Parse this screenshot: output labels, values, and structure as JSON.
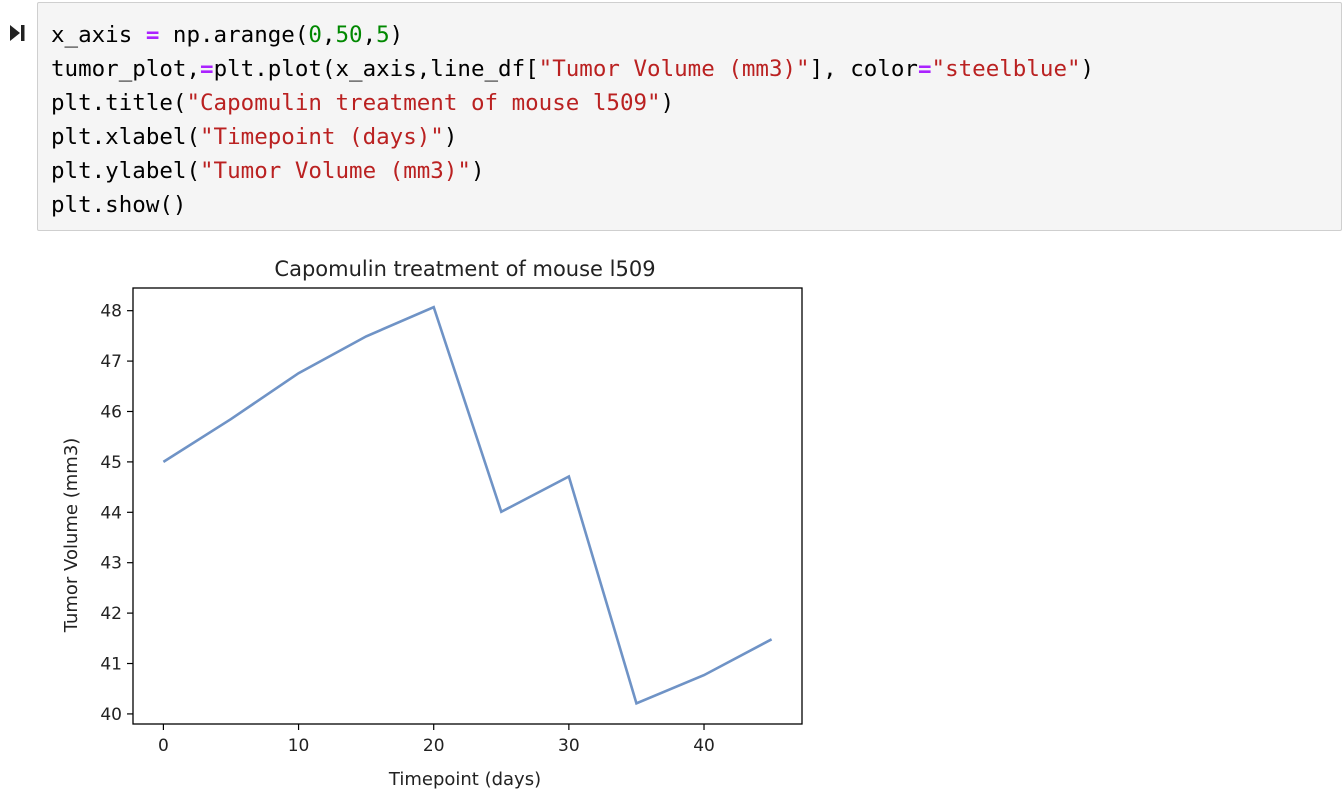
{
  "cell": {
    "run_icon": "run-cell-icon",
    "lines": [
      [
        {
          "t": "x_axis ",
          "c": "tok-plain"
        },
        {
          "t": "=",
          "c": "tok-op"
        },
        {
          "t": " np.arange(",
          "c": "tok-plain"
        },
        {
          "t": "0",
          "c": "tok-num"
        },
        {
          "t": ",",
          "c": "tok-plain"
        },
        {
          "t": "50",
          "c": "tok-num"
        },
        {
          "t": ",",
          "c": "tok-plain"
        },
        {
          "t": "5",
          "c": "tok-num"
        },
        {
          "t": ")",
          "c": "tok-plain"
        }
      ],
      [
        {
          "t": "tumor_plot,",
          "c": "tok-plain"
        },
        {
          "t": "=",
          "c": "tok-op"
        },
        {
          "t": "plt.plot(x_axis,line_df[",
          "c": "tok-plain"
        },
        {
          "t": "\"Tumor Volume (mm3)\"",
          "c": "tok-str"
        },
        {
          "t": "], color",
          "c": "tok-plain"
        },
        {
          "t": "=",
          "c": "tok-op"
        },
        {
          "t": "\"steelblue\"",
          "c": "tok-str"
        },
        {
          "t": ")",
          "c": "tok-plain"
        }
      ],
      [
        {
          "t": "plt.title(",
          "c": "tok-plain"
        },
        {
          "t": "\"Capomulin treatment of mouse l509\"",
          "c": "tok-str"
        },
        {
          "t": ")",
          "c": "tok-plain"
        }
      ],
      [
        {
          "t": "plt.xlabel(",
          "c": "tok-plain"
        },
        {
          "t": "\"Timepoint (days)\"",
          "c": "tok-str"
        },
        {
          "t": ")",
          "c": "tok-plain"
        }
      ],
      [
        {
          "t": "plt.ylabel(",
          "c": "tok-plain"
        },
        {
          "t": "\"Tumor Volume (mm3)\"",
          "c": "tok-str"
        },
        {
          "t": ")",
          "c": "tok-plain"
        }
      ],
      [
        {
          "t": "plt.show()",
          "c": "tok-plain"
        }
      ]
    ]
  },
  "chart_data": {
    "type": "line",
    "title": "Capomulin treatment of mouse l509",
    "xlabel": "Timepoint (days)",
    "ylabel": "Tumor Volume (mm3)",
    "x": [
      0,
      5,
      10,
      15,
      20,
      25,
      30,
      35,
      40,
      45
    ],
    "series": [
      {
        "values": [
          45.0,
          45.85,
          46.76,
          47.49,
          48.07,
          44.01,
          44.71,
          40.21,
          40.77,
          41.48
        ],
        "color": "#6f93c6"
      }
    ],
    "xlim": [
      -2.25,
      47.25
    ],
    "ylim": [
      39.8,
      48.45
    ],
    "xticks": [
      0,
      10,
      20,
      30,
      40
    ],
    "yticks": [
      40,
      41,
      42,
      43,
      44,
      45,
      46,
      47,
      48
    ],
    "grid": false
  }
}
